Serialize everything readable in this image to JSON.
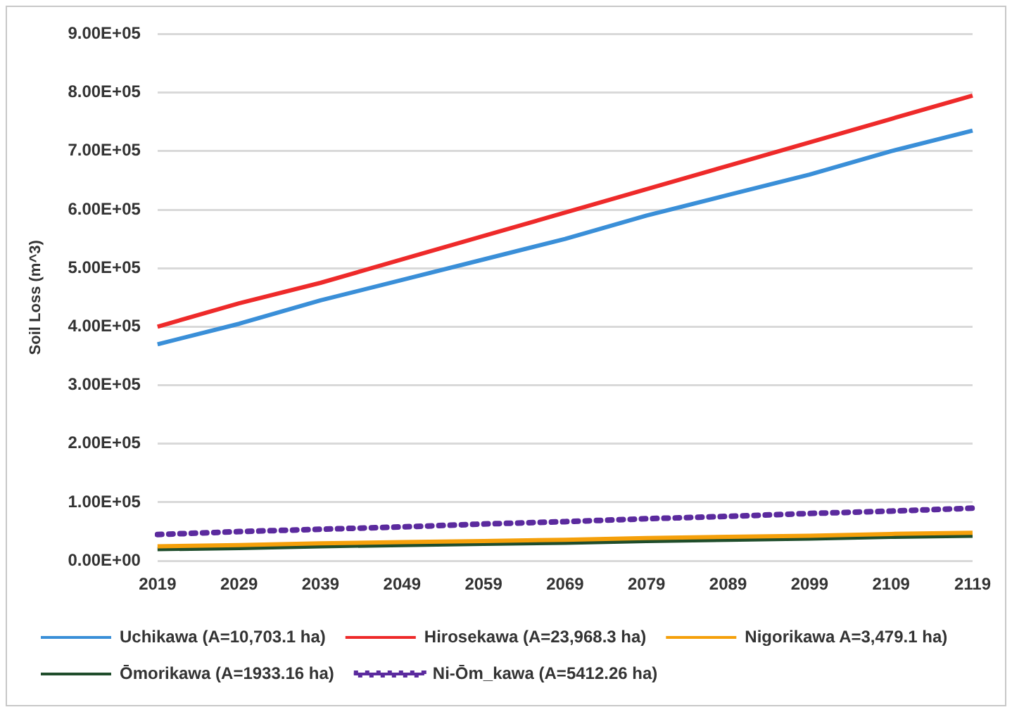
{
  "chart_data": {
    "type": "line",
    "ylabel": "Soil Loss (m^3)",
    "categories": [
      "2019",
      "2029",
      "2039",
      "2049",
      "2059",
      "2069",
      "2079",
      "2089",
      "2099",
      "2109",
      "2119"
    ],
    "ylim": [
      0,
      900000
    ],
    "yticks": [
      {
        "value": 0,
        "label": "0.00E+00"
      },
      {
        "value": 100000,
        "label": "1.00E+05"
      },
      {
        "value": 200000,
        "label": "2.00E+05"
      },
      {
        "value": 300000,
        "label": "3.00E+05"
      },
      {
        "value": 400000,
        "label": "4.00E+05"
      },
      {
        "value": 500000,
        "label": "5.00E+05"
      },
      {
        "value": 600000,
        "label": "6.00E+05"
      },
      {
        "value": 700000,
        "label": "7.00E+05"
      },
      {
        "value": 800000,
        "label": "8.00E+05"
      },
      {
        "value": 900000,
        "label": "9.00E+05"
      }
    ],
    "grid": "y",
    "legend": "bottom",
    "marker": "none",
    "series": [
      {
        "name": "Uchikawa (A=10,703.1 ha)",
        "color": "#3a8fd8",
        "line_style": "solid",
        "values": [
          370000,
          405000,
          445000,
          480000,
          515000,
          550000,
          590000,
          625000,
          660000,
          700000,
          735000
        ]
      },
      {
        "name": "Hirosekawa (A=23,968.3 ha)",
        "color": "#ee2a2a",
        "line_style": "solid",
        "values": [
          400000,
          440000,
          475000,
          515000,
          555000,
          595000,
          635000,
          675000,
          715000,
          755000,
          795000
        ]
      },
      {
        "name": "Nigorikawa A=3,479.1 ha)",
        "color": "#f5a00a",
        "line_style": "solid",
        "values": [
          25000,
          27000,
          30000,
          32000,
          34000,
          36000,
          39000,
          41000,
          43000,
          46000,
          48000
        ]
      },
      {
        "name": "Ōmorikawa (A=1933.16 ha)",
        "color": "#1f4d2b",
        "line_style": "solid",
        "values": [
          20000,
          22000,
          25000,
          27000,
          29000,
          31000,
          34000,
          36000,
          38000,
          41000,
          43000
        ]
      },
      {
        "name": "Ni-Ōm_kawa (A=5412.26 ha)",
        "color": "#5b2a9e",
        "line_style": "dotted",
        "values": [
          45000,
          50000,
          54000,
          58000,
          63000,
          67000,
          72000,
          76000,
          81000,
          85000,
          90000
        ]
      }
    ]
  }
}
